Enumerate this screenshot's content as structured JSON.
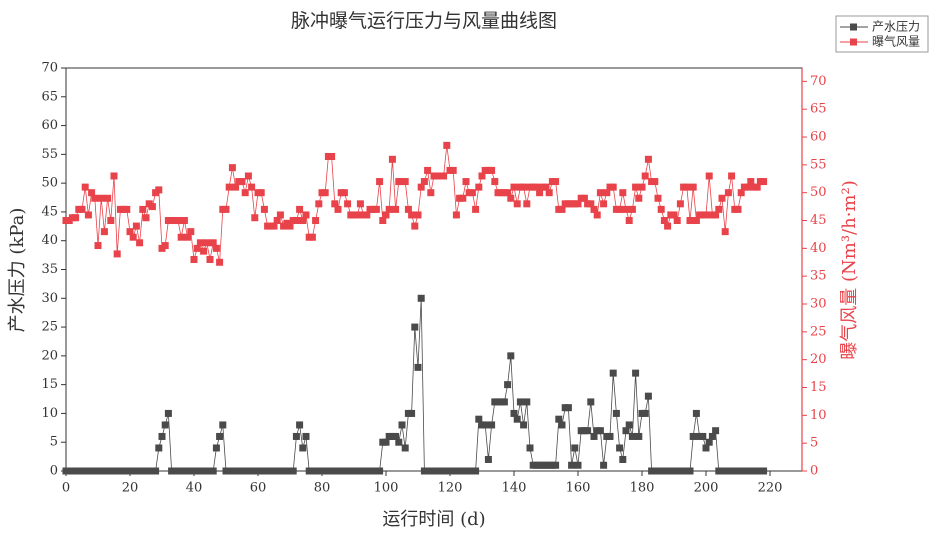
{
  "chart_data": {
    "type": "line",
    "title": "脉冲曝气运行压力与风量曲线图",
    "x_label": "运行时间 (d)",
    "y_label": "产水压力 (kPa)",
    "y2_label": "曝气风量 (Nm³/h·m²)",
    "x": [
      0,
      1,
      2,
      3,
      4,
      5,
      6,
      7,
      8,
      9,
      10,
      11,
      12,
      13,
      14,
      15,
      16,
      17,
      18,
      19,
      20,
      21,
      22,
      23,
      24,
      25,
      26,
      27,
      28,
      29,
      30,
      31,
      32,
      33,
      34,
      35,
      36,
      37,
      38,
      39,
      40,
      41,
      42,
      43,
      44,
      45,
      46,
      47,
      48,
      49,
      50,
      51,
      52,
      53,
      54,
      55,
      56,
      57,
      58,
      59,
      60,
      61,
      62,
      63,
      64,
      65,
      66,
      67,
      68,
      69,
      70,
      71,
      72,
      73,
      74,
      75,
      76,
      77,
      78,
      79,
      80,
      81,
      82,
      83,
      84,
      85,
      86,
      87,
      88,
      89,
      90,
      91,
      92,
      93,
      94,
      95,
      96,
      97,
      98,
      99,
      100,
      101,
      102,
      103,
      104,
      105,
      106,
      107,
      108,
      109,
      110,
      111,
      112,
      113,
      114,
      115,
      116,
      117,
      118,
      119,
      120,
      121,
      122,
      123,
      124,
      125,
      126,
      127,
      128,
      129,
      130,
      131,
      132,
      133,
      134,
      135,
      136,
      137,
      138,
      139,
      140,
      141,
      142,
      143,
      144,
      145,
      146,
      147,
      148,
      149,
      150,
      151,
      152,
      153,
      154,
      155,
      156,
      157,
      158,
      159,
      160,
      161,
      162,
      163,
      164,
      165,
      166,
      167,
      168,
      169,
      170,
      171,
      172,
      173,
      174,
      175,
      176,
      177,
      178,
      179,
      180,
      181,
      182,
      183,
      184,
      185,
      186,
      187,
      188,
      189,
      190,
      191,
      192,
      193,
      194,
      195,
      196,
      197,
      198,
      199,
      200,
      201,
      202,
      203,
      204,
      205,
      206,
      207,
      208,
      209,
      210,
      211,
      212,
      213,
      214,
      215,
      216,
      217,
      218
    ],
    "series": [
      {
        "name": "产水压力",
        "color": "#4a4a4a",
        "axis": "y",
        "values": [
          0,
          0,
          0,
          0,
          0,
          0,
          0,
          0,
          0,
          0,
          0,
          0,
          0,
          0,
          0,
          0,
          0,
          0,
          0,
          0,
          0,
          0,
          0,
          0,
          0,
          0,
          0,
          0,
          0,
          4,
          6,
          8,
          10,
          0,
          0,
          0,
          0,
          0,
          0,
          0,
          0,
          0,
          0,
          0,
          0,
          0,
          0,
          4,
          6,
          8,
          0,
          0,
          0,
          0,
          0,
          0,
          0,
          0,
          0,
          0,
          0,
          0,
          0,
          0,
          0,
          0,
          0,
          0,
          0,
          0,
          0,
          0,
          6,
          8,
          4,
          6,
          0,
          0,
          0,
          0,
          0,
          0,
          0,
          0,
          0,
          0,
          0,
          0,
          0,
          0,
          0,
          0,
          0,
          0,
          0,
          0,
          0,
          0,
          0,
          5,
          5,
          6,
          6,
          6,
          5,
          8,
          4,
          10,
          10,
          25,
          18,
          30,
          0,
          0,
          0,
          0,
          0,
          0,
          0,
          0,
          0,
          0,
          0,
          0,
          0,
          0,
          0,
          0,
          0,
          9,
          8,
          8,
          2,
          8,
          12,
          12,
          12,
          12,
          15,
          20,
          10,
          9,
          12,
          8,
          12,
          4,
          1,
          1,
          1,
          1,
          1,
          1,
          1,
          1,
          9,
          8,
          11,
          11,
          1,
          4,
          1,
          7,
          7,
          7,
          12,
          6,
          7,
          7,
          1,
          6,
          6,
          17,
          10,
          4,
          2,
          7,
          8,
          6,
          17,
          6,
          10,
          10,
          13,
          0,
          0,
          0,
          0,
          0,
          0,
          0,
          0,
          0,
          0,
          0,
          0,
          0,
          6,
          10,
          6,
          6,
          4,
          5,
          6,
          7,
          0,
          0,
          0,
          0,
          0,
          0,
          0,
          0,
          0,
          0,
          0,
          0,
          0,
          0,
          0
        ]
      },
      {
        "name": "曝气风量",
        "color": "#e8434a",
        "axis": "y2",
        "values": [
          45,
          45,
          45.5,
          45.5,
          47,
          47,
          51,
          46,
          50,
          49,
          40.5,
          49,
          43,
          49,
          45,
          53,
          39,
          47,
          47,
          47,
          43,
          42,
          44,
          41,
          47,
          45.5,
          48,
          47.5,
          50,
          50.5,
          40,
          40.5,
          45,
          45,
          45,
          45,
          42,
          45,
          42,
          43,
          38,
          40,
          41,
          39.5,
          41,
          38,
          41,
          40,
          37.5,
          47,
          47,
          51,
          54.5,
          51,
          52,
          52,
          50,
          53,
          51,
          45.5,
          50,
          50,
          47,
          44,
          44,
          44,
          45,
          46,
          44,
          44.5,
          44,
          45,
          45,
          47,
          45,
          46,
          42,
          42,
          45,
          48,
          50,
          50,
          56.5,
          56.5,
          48,
          47,
          50,
          50,
          48,
          46,
          46,
          46,
          48,
          46,
          46,
          47,
          47,
          47,
          52,
          45,
          46,
          47,
          56,
          47,
          52,
          52,
          52,
          47,
          46,
          44,
          46,
          51,
          52,
          54,
          50,
          53,
          53,
          53,
          53,
          58.5,
          54,
          54,
          46,
          49,
          49,
          52,
          50,
          50,
          47,
          51,
          53,
          54,
          54,
          54,
          52,
          50,
          50,
          50,
          50,
          49,
          51,
          48,
          51,
          51,
          48,
          51,
          51,
          51,
          50,
          51,
          51,
          50,
          52,
          52,
          47,
          47,
          48,
          48,
          48,
          48,
          48,
          49,
          49,
          48,
          48,
          47,
          46,
          50,
          48,
          50,
          51,
          51,
          47,
          47,
          50,
          47,
          45,
          47,
          51,
          49,
          51,
          53,
          56,
          52,
          52,
          49,
          47,
          45,
          44,
          46,
          46,
          45,
          48,
          51,
          51,
          45,
          51,
          45,
          46,
          46,
          46,
          53,
          46,
          46,
          47,
          49,
          43,
          50,
          53,
          47,
          47,
          50,
          51,
          51,
          52,
          51,
          51,
          52,
          52
        ]
      }
    ],
    "xlim": [
      0,
      230
    ],
    "xticks": [
      0,
      20,
      40,
      60,
      80,
      100,
      120,
      140,
      160,
      180,
      200,
      220
    ],
    "ylim": [
      0,
      70
    ],
    "yticks": [
      0,
      5,
      10,
      15,
      20,
      25,
      30,
      35,
      40,
      45,
      50,
      55,
      60,
      65,
      70
    ],
    "y2lim": [
      0,
      72.4
    ],
    "y2ticks": [
      0,
      5,
      10,
      15,
      20,
      25,
      30,
      35,
      40,
      45,
      50,
      55,
      60,
      65,
      70
    ],
    "y2_color": "#e8434a"
  }
}
